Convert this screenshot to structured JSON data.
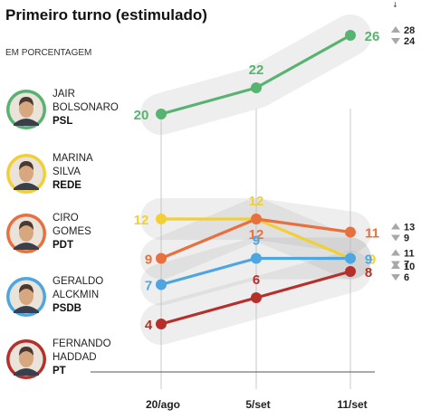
{
  "header": {
    "title": "Primeiro turno (estimulado)",
    "subtitle": "EM PORCENTAGEM"
  },
  "candidates": [
    {
      "line1": "JAIR",
      "line2": "BOLSONARO",
      "party": "PSL",
      "color": "#58b370",
      "icon": "bolsonaro-portrait-icon"
    },
    {
      "line1": "MARINA",
      "line2": "SILVA",
      "party": "REDE",
      "color": "#f2cf36",
      "icon": "marina-portrait-icon"
    },
    {
      "line1": "CIRO",
      "line2": "GOMES",
      "party": "PDT",
      "color": "#e8703f",
      "icon": "ciro-portrait-icon"
    },
    {
      "line1": "GERALDO",
      "line2": "ALCKMIN",
      "party": "PSDB",
      "color": "#4da6e2",
      "icon": "alckmin-portrait-icon"
    },
    {
      "line1": "FERNANDO",
      "line2": "HADDAD",
      "party": "PT",
      "color": "#b5302a",
      "icon": "haddad-portrait-icon"
    }
  ],
  "chart_data": {
    "type": "line",
    "title": "Primeiro turno (estimulado)",
    "subtitle": "EM PORCENTAGEM",
    "categories": [
      "20/ago",
      "5/set",
      "11/set"
    ],
    "series": [
      {
        "name": "JAIR BOLSONARO",
        "party": "PSL",
        "color": "#58b370",
        "values": [
          20,
          22,
          26
        ],
        "labels": [
          "20",
          "22",
          "26"
        ],
        "margin": {
          "high": "28",
          "low": "24"
        }
      },
      {
        "name": "MARINA SILVA",
        "party": "REDE",
        "color": "#f2cf36",
        "values": [
          12,
          12,
          9
        ],
        "labels": [
          "12",
          "12",
          "9"
        ]
      },
      {
        "name": "CIRO GOMES",
        "party": "PDT",
        "color": "#e8703f",
        "values": [
          9,
          12,
          11
        ],
        "labels": [
          "9",
          "12",
          "11"
        ],
        "margin": {
          "high": "13",
          "low": "9"
        }
      },
      {
        "name": "GERALDO ALCKMIN",
        "party": "PSDB",
        "color": "#4da6e2",
        "values": [
          7,
          9,
          9
        ],
        "labels": [
          "7",
          "9",
          "9"
        ],
        "margin": {
          "high": "11",
          "low": "7"
        }
      },
      {
        "name": "FERNANDO HADDAD",
        "party": "PT",
        "color": "#b5302a",
        "values": [
          4,
          6,
          8
        ],
        "labels": [
          "4",
          "6",
          "8"
        ],
        "margin": {
          "high": "10",
          "low": "6"
        }
      }
    ],
    "grid": false,
    "legend": "left"
  }
}
